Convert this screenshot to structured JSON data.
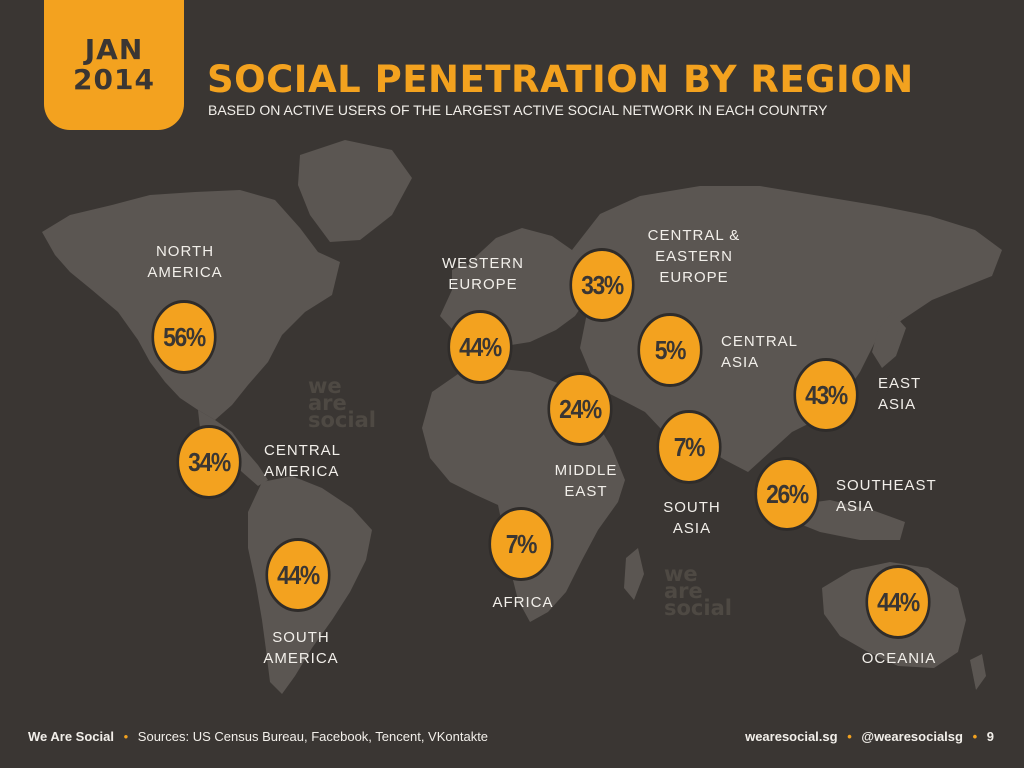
{
  "badge": {
    "month": "JAN",
    "year": "2014"
  },
  "title": "SOCIAL PENETRATION BY REGION",
  "subtitle": "BASED ON ACTIVE USERS OF THE LARGEST ACTIVE SOCIAL NETWORK IN EACH COUNTRY",
  "watermark": {
    "line1": "we",
    "line2": "are",
    "line3": "social"
  },
  "colors": {
    "accent": "#f3a21f",
    "background": "#3a3633",
    "land": "#5b5652",
    "text": "#f2efea"
  },
  "chart_data": {
    "type": "bubble-map",
    "title": "SOCIAL PENETRATION BY REGION",
    "unit": "%",
    "regions": [
      {
        "name": "NORTH AMERICA",
        "label_lines": [
          "NORTH",
          "AMERICA"
        ],
        "value": 56,
        "display": "56%"
      },
      {
        "name": "CENTRAL AMERICA",
        "label_lines": [
          "CENTRAL",
          "AMERICA"
        ],
        "value": 34,
        "display": "34%"
      },
      {
        "name": "SOUTH AMERICA",
        "label_lines": [
          "SOUTH",
          "AMERICA"
        ],
        "value": 44,
        "display": "44%"
      },
      {
        "name": "WESTERN EUROPE",
        "label_lines": [
          "WESTERN",
          "EUROPE"
        ],
        "value": 44,
        "display": "44%"
      },
      {
        "name": "CENTRAL & EASTERN EUROPE",
        "label_lines": [
          "CENTRAL &",
          "EASTERN",
          "EUROPE"
        ],
        "value": 33,
        "display": "33%"
      },
      {
        "name": "CENTRAL ASIA",
        "label_lines": [
          "CENTRAL",
          "ASIA"
        ],
        "value": 5,
        "display": "5%"
      },
      {
        "name": "MIDDLE EAST",
        "label_lines": [
          "MIDDLE",
          "EAST"
        ],
        "value": 24,
        "display": "24%"
      },
      {
        "name": "AFRICA",
        "label_lines": [
          "AFRICA"
        ],
        "value": 7,
        "display": "7%"
      },
      {
        "name": "SOUTH ASIA",
        "label_lines": [
          "SOUTH",
          "ASIA"
        ],
        "value": 7,
        "display": "7%"
      },
      {
        "name": "EAST ASIA",
        "label_lines": [
          "EAST",
          "ASIA"
        ],
        "value": 43,
        "display": "43%"
      },
      {
        "name": "SOUTHEAST ASIA",
        "label_lines": [
          "SOUTHEAST",
          "ASIA"
        ],
        "value": 26,
        "display": "26%"
      },
      {
        "name": "OCEANIA",
        "label_lines": [
          "OCEANIA"
        ],
        "value": 44,
        "display": "44%"
      }
    ]
  },
  "footer": {
    "brand": "We Are Social",
    "sources": "Sources: US Census Bureau, Facebook, Tencent, VKontakte",
    "website": "wearesocial.sg",
    "handle": "@wearesocialsg",
    "page": "9"
  }
}
